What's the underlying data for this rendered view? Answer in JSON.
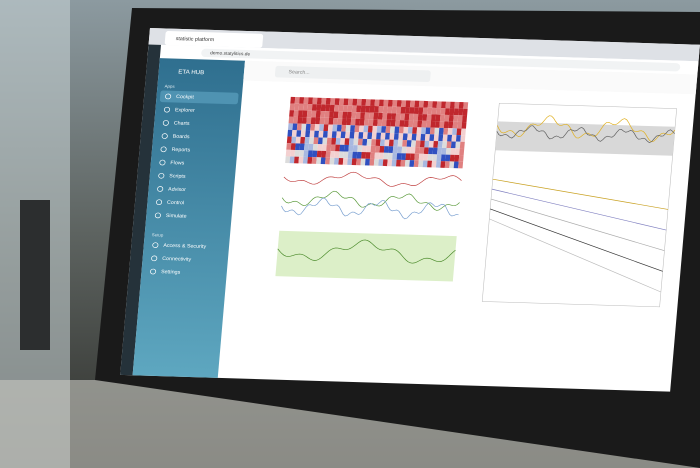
{
  "browser": {
    "tab": "statistic platform",
    "url": "demo.statylitics.de"
  },
  "app": {
    "title": "ETA HUB",
    "search": "Search..."
  },
  "sidebar": {
    "sections": [
      {
        "label": "Apps",
        "items": [
          "Cockpit",
          "Explorer",
          "Charts",
          "Boards",
          "Reports",
          "Flows",
          "Scripts",
          "Advisor",
          "Control",
          "Simulate"
        ]
      },
      {
        "label": "Setup",
        "items": [
          "Access & Security",
          "Connectivity",
          "Settings"
        ]
      }
    ]
  }
}
